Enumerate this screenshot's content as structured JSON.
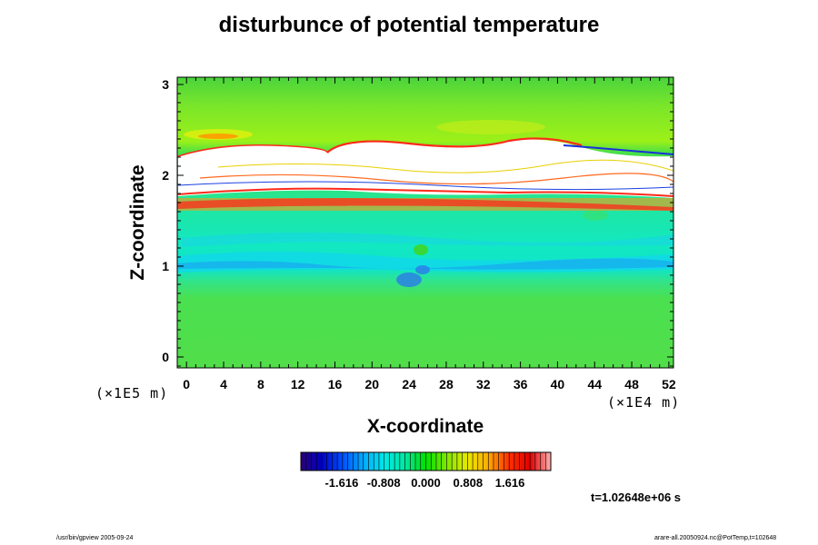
{
  "chart_data": {
    "type": "heatmap",
    "title": "disturbunce of potential temperature",
    "xlabel": "X-coordinate",
    "ylabel": "Z-coordinate",
    "x_unit": "(×1E4 m)",
    "z_unit": "(×1E5 m)",
    "xlim": [
      -1,
      52.5
    ],
    "ylim": [
      -0.12,
      3.08
    ],
    "x_ticks": [
      0,
      4,
      8,
      12,
      16,
      20,
      24,
      28,
      32,
      36,
      40,
      44,
      48,
      52
    ],
    "y_ticks": [
      0,
      1,
      2,
      3
    ],
    "colorbar": {
      "ticks": [
        -1.616,
        -0.808,
        0.0,
        0.808,
        1.616
      ],
      "tick_labels": [
        "-1.616",
        "-0.808",
        "0.000",
        "0.808",
        "1.616"
      ],
      "range": [
        -2.4,
        2.4
      ],
      "colors": [
        "#2a0070",
        "#0000c8",
        "#0050ff",
        "#00aaff",
        "#00e8e8",
        "#00e8a0",
        "#00e000",
        "#80e800",
        "#e8e800",
        "#ffaa00",
        "#ff3000",
        "#e00000",
        "#ffb0b0"
      ]
    },
    "time_label": "t=1.02648e+06 s"
  },
  "footer_left": "/usr/bin/gpview 2005-09-24",
  "footer_right": "arare-all.20050924.nc@PotTemp,t=102648"
}
